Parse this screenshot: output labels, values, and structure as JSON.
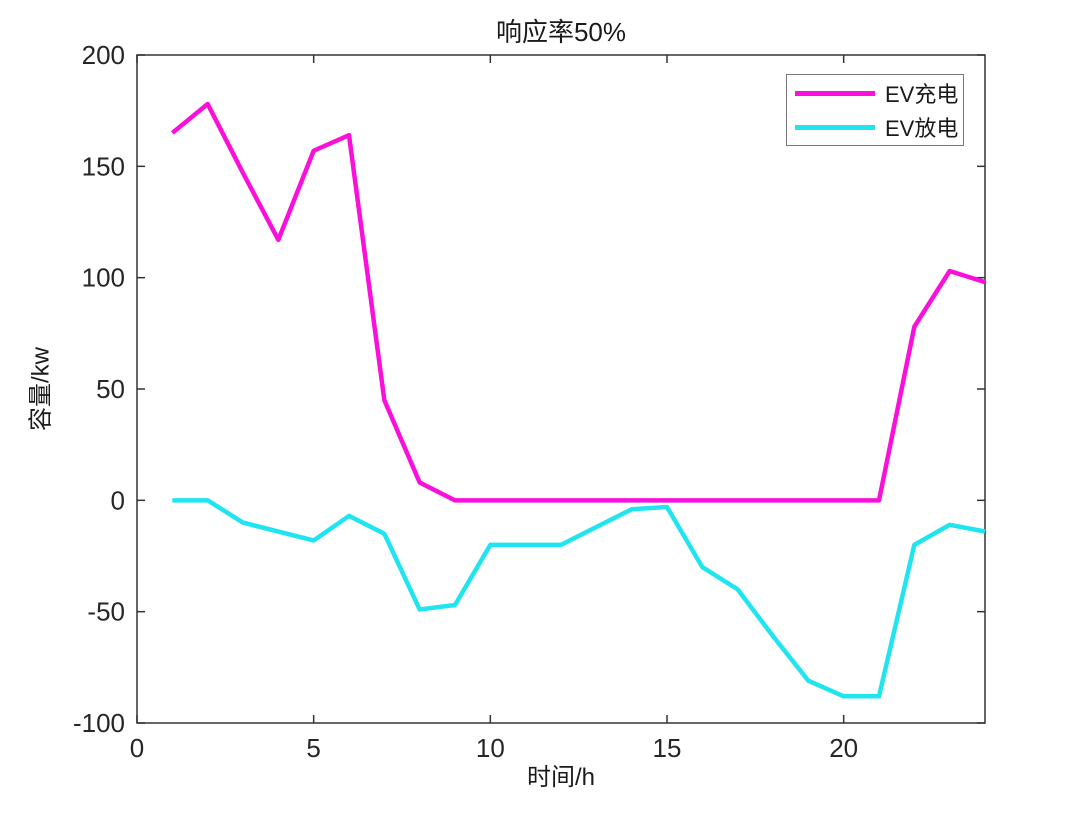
{
  "figure": {
    "title": "响应率50%",
    "xlabel": "时间/h",
    "ylabel": "容量/kw"
  },
  "chart_data": {
    "type": "line",
    "title": "响应率50%",
    "xlabel": "时间/h",
    "ylabel": "容量/kw",
    "xlim": [
      0,
      24
    ],
    "ylim": [
      -100,
      200
    ],
    "xticks": [
      0,
      5,
      10,
      15,
      20
    ],
    "yticks": [
      -100,
      -50,
      0,
      50,
      100,
      150,
      200
    ],
    "grid": false,
    "legend_position": "top-right",
    "x": [
      1,
      2,
      3,
      4,
      5,
      6,
      7,
      8,
      9,
      10,
      11,
      12,
      13,
      14,
      15,
      16,
      17,
      18,
      19,
      20,
      21,
      22,
      23,
      24
    ],
    "series": [
      {
        "name": "EV充电",
        "color": "#fa10da",
        "values": [
          165,
          178,
          147,
          117,
          157,
          164,
          45,
          8,
          0,
          0,
          0,
          0,
          0,
          0,
          0,
          0,
          0,
          0,
          0,
          0,
          0,
          78,
          103,
          98
        ]
      },
      {
        "name": "EV放电",
        "color": "#20e4f0",
        "values": [
          0,
          0,
          -10,
          -14,
          -18,
          -7,
          -15,
          -49,
          -47,
          -20,
          -20,
          -20,
          -12,
          -4,
          -3,
          -30,
          -40,
          -61,
          -81,
          -88,
          -88,
          -20,
          -11,
          -14
        ]
      }
    ]
  }
}
